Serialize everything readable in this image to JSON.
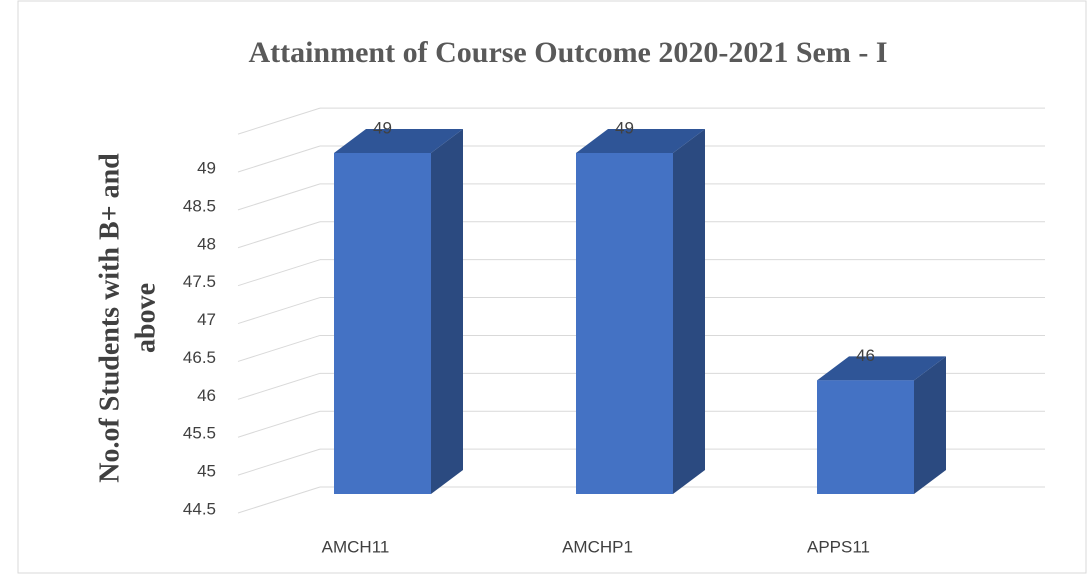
{
  "chart_data": {
    "type": "bar3d",
    "title": "Attainment of Course Outcome 2020-2021 Sem - I",
    "ylabel": [
      "No.of Students with B+ and",
      "above"
    ],
    "categories": [
      "AMCH11",
      "AMCHP1",
      "APPS11"
    ],
    "values": [
      49,
      49,
      46
    ],
    "color": "#4472c4",
    "ylim": [
      44.5,
      49.5
    ],
    "yticks": [
      44.5,
      45,
      45.5,
      46,
      46.5,
      47,
      47.5,
      48,
      48.5,
      49
    ],
    "grid": true
  }
}
